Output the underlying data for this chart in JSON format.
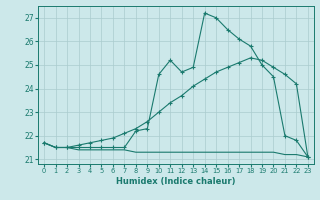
{
  "background_color": "#cce8ea",
  "grid_color": "#aaccce",
  "line_color": "#1a7a6e",
  "xlabel": "Humidex (Indice chaleur)",
  "xlim": [
    -0.5,
    23.5
  ],
  "ylim": [
    20.8,
    27.5
  ],
  "yticks": [
    21,
    22,
    23,
    24,
    25,
    26,
    27
  ],
  "xticks": [
    0,
    1,
    2,
    3,
    4,
    5,
    6,
    7,
    8,
    9,
    10,
    11,
    12,
    13,
    14,
    15,
    16,
    17,
    18,
    19,
    20,
    21,
    22,
    23
  ],
  "series1_x": [
    0,
    1,
    2,
    3,
    4,
    5,
    6,
    7,
    8,
    9,
    10,
    11,
    12,
    13,
    14,
    15,
    16,
    17,
    18,
    19,
    20,
    21,
    22,
    23
  ],
  "series1_y": [
    21.7,
    21.5,
    21.5,
    21.4,
    21.4,
    21.4,
    21.4,
    21.4,
    21.3,
    21.3,
    21.3,
    21.3,
    21.3,
    21.3,
    21.3,
    21.3,
    21.3,
    21.3,
    21.3,
    21.3,
    21.3,
    21.2,
    21.2,
    21.1
  ],
  "series2_x": [
    0,
    1,
    2,
    3,
    4,
    5,
    6,
    7,
    8,
    9,
    10,
    11,
    12,
    13,
    14,
    15,
    16,
    17,
    18,
    19,
    20,
    21,
    22,
    23
  ],
  "series2_y": [
    21.7,
    21.5,
    21.5,
    21.6,
    21.7,
    21.8,
    21.9,
    22.1,
    22.3,
    22.6,
    23.0,
    23.4,
    23.7,
    24.1,
    24.4,
    24.7,
    24.9,
    25.1,
    25.3,
    25.2,
    24.9,
    24.6,
    24.2,
    21.1
  ],
  "series3_x": [
    0,
    1,
    2,
    3,
    4,
    5,
    6,
    7,
    8,
    9,
    10,
    11,
    12,
    13,
    14,
    15,
    16,
    17,
    18,
    19,
    20,
    21,
    22,
    23
  ],
  "series3_y": [
    21.7,
    21.5,
    21.5,
    21.5,
    21.5,
    21.5,
    21.5,
    21.5,
    22.2,
    22.3,
    24.6,
    25.2,
    24.7,
    24.9,
    27.2,
    27.0,
    26.5,
    26.1,
    25.8,
    25.0,
    24.5,
    22.0,
    21.8,
    21.1
  ]
}
